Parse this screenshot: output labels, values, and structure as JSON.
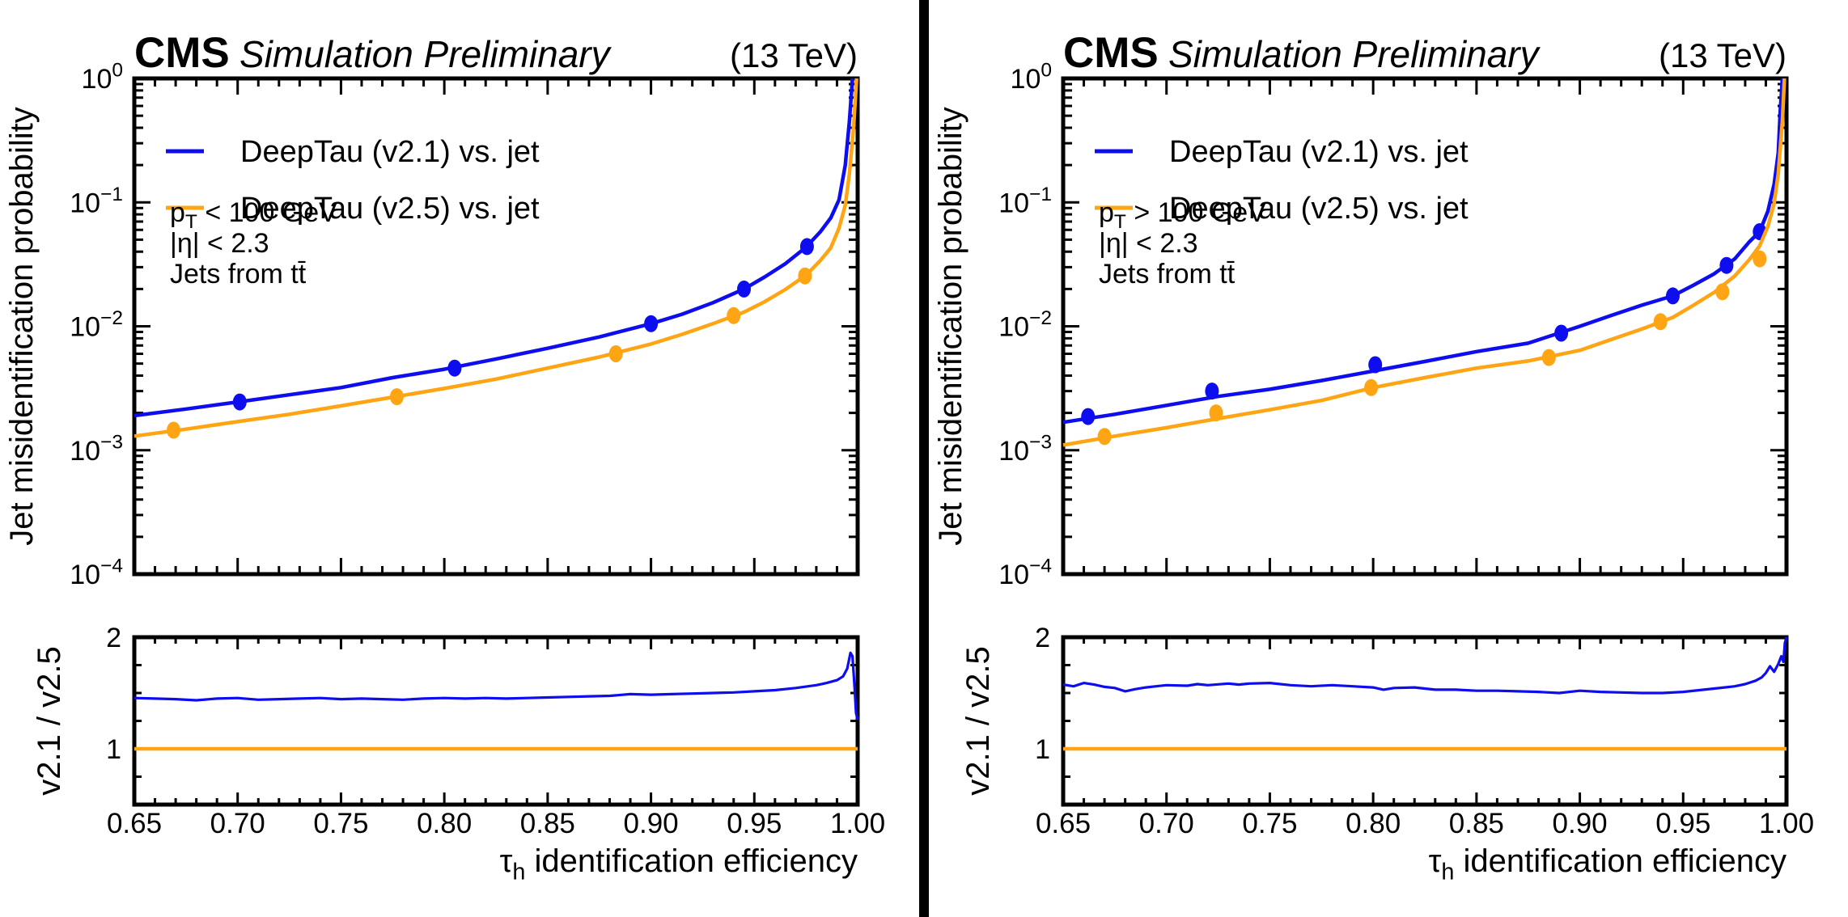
{
  "colors": {
    "blue": "#0d0df0",
    "orange": "#ffa513",
    "frame": "#000000",
    "background": "#ffffff"
  },
  "chart_data": {
    "type": "line",
    "panels": [
      {
        "name": "pt-below-100",
        "header": {
          "experiment": "CMS",
          "sublabel": "Simulation Preliminary",
          "energy": "(13 TeV)"
        },
        "legend": [
          {
            "label": "DeepTau (v2.1) vs. jet",
            "color": "blue"
          },
          {
            "label": "DeepTau (v2.5) vs. jet",
            "color": "orange"
          }
        ],
        "annotations": [
          [
            {
              "t": "p"
            },
            {
              "t": "T",
              "sub": true
            },
            {
              "t": " < 100 GeV"
            }
          ],
          [
            {
              "t": "|η| < 2.3"
            }
          ],
          [
            {
              "t": "Jets from tt̄"
            }
          ]
        ],
        "axes": {
          "x": {
            "label_tokens": [
              {
                "t": "τ"
              },
              {
                "t": "h",
                "sub": true
              },
              {
                "t": " identification efficiency"
              }
            ],
            "lim": [
              0.65,
              1.0
            ],
            "major_ticks": [
              0.65,
              0.7,
              0.75,
              0.8,
              0.85,
              0.9,
              0.95,
              1.0
            ],
            "minor_step": 0.01
          },
          "y_main": {
            "label": "Jet misidentification probability",
            "scale": "log",
            "tick_exponents": [
              0,
              -1,
              -2,
              -3,
              -4
            ]
          },
          "y_ratio": {
            "label": "v2.1 / v2.5",
            "lim": [
              0.5,
              2
            ],
            "major_ticks": [
              1,
              2
            ],
            "minor_step": 0.25
          }
        },
        "main_series": [
          {
            "name": "DeepTau (v2.1) vs. jet",
            "color": "blue",
            "x": [
              0.65,
              0.675,
              0.7,
              0.725,
              0.75,
              0.775,
              0.8,
              0.825,
              0.85,
              0.875,
              0.9,
              0.915,
              0.93,
              0.945,
              0.955,
              0.965,
              0.975,
              0.982,
              0.987,
              0.991,
              0.994,
              0.996,
              0.9975
            ],
            "y": [
              0.0019,
              0.00215,
              0.00245,
              0.0028,
              0.0032,
              0.00385,
              0.0045,
              0.00545,
              0.00665,
              0.0082,
              0.0105,
              0.0125,
              0.0155,
              0.02,
              0.025,
              0.032,
              0.0435,
              0.058,
              0.075,
              0.105,
              0.2,
              0.45,
              1.0
            ],
            "markers": [
              [
                0.701,
                0.00245
              ],
              [
                0.805,
                0.0046
              ],
              [
                0.9,
                0.0105
              ],
              [
                0.945,
                0.02
              ],
              [
                0.9755,
                0.044
              ]
            ]
          },
          {
            "name": "DeepTau (v2.5) vs. jet",
            "color": "orange",
            "x": [
              0.65,
              0.675,
              0.7,
              0.725,
              0.75,
              0.775,
              0.8,
              0.825,
              0.85,
              0.875,
              0.9,
              0.915,
              0.93,
              0.945,
              0.955,
              0.965,
              0.975,
              0.982,
              0.987,
              0.991,
              0.994,
              0.996,
              0.998,
              0.9995
            ],
            "y": [
              0.0013,
              0.00148,
              0.0017,
              0.00195,
              0.00228,
              0.00268,
              0.00315,
              0.00375,
              0.0046,
              0.00565,
              0.0072,
              0.0086,
              0.0105,
              0.013,
              0.0158,
              0.0198,
              0.0258,
              0.034,
              0.043,
              0.062,
              0.095,
              0.17,
              0.4,
              1.0
            ],
            "markers": [
              [
                0.669,
                0.00145
              ],
              [
                0.777,
                0.0027
              ],
              [
                0.883,
                0.006
              ],
              [
                0.94,
                0.0122
              ],
              [
                0.9745,
                0.0255
              ]
            ]
          }
        ],
        "ratio_series": [
          {
            "name": "v2.1 / v2.5 ratio",
            "color": "blue",
            "width": 3.2,
            "x": [
              0.65,
              0.66,
              0.67,
              0.68,
              0.69,
              0.7,
              0.71,
              0.72,
              0.73,
              0.74,
              0.75,
              0.76,
              0.77,
              0.78,
              0.79,
              0.8,
              0.81,
              0.82,
              0.83,
              0.84,
              0.85,
              0.86,
              0.87,
              0.88,
              0.89,
              0.9,
              0.91,
              0.92,
              0.93,
              0.94,
              0.95,
              0.96,
              0.97,
              0.98,
              0.985,
              0.99,
              0.993,
              0.995,
              0.9965,
              0.9975,
              0.9985,
              0.9992,
              1.0
            ],
            "y": [
              1.455,
              1.45,
              1.445,
              1.435,
              1.45,
              1.455,
              1.44,
              1.445,
              1.45,
              1.455,
              1.445,
              1.45,
              1.445,
              1.44,
              1.45,
              1.455,
              1.45,
              1.455,
              1.45,
              1.455,
              1.46,
              1.465,
              1.47,
              1.475,
              1.49,
              1.485,
              1.49,
              1.495,
              1.5,
              1.505,
              1.515,
              1.525,
              1.545,
              1.57,
              1.59,
              1.615,
              1.65,
              1.72,
              1.86,
              1.83,
              1.55,
              1.32,
              1.26
            ]
          },
          {
            "name": "v2.5 reference",
            "color": "orange",
            "width": 4.5,
            "x": [
              0.65,
              1.0
            ],
            "y": [
              1.0,
              1.0
            ]
          }
        ]
      },
      {
        "name": "pt-above-100",
        "header": {
          "experiment": "CMS",
          "sublabel": "Simulation Preliminary",
          "energy": "(13 TeV)"
        },
        "legend": [
          {
            "label": "DeepTau (v2.1) vs. jet",
            "color": "blue"
          },
          {
            "label": "DeepTau (v2.5) vs. jet",
            "color": "orange"
          }
        ],
        "annotations": [
          [
            {
              "t": "p"
            },
            {
              "t": "T",
              "sub": true
            },
            {
              "t": " > 100 GeV"
            }
          ],
          [
            {
              "t": "|η| < 2.3"
            }
          ],
          [
            {
              "t": "Jets from tt̄"
            }
          ]
        ],
        "axes": {
          "x": {
            "label_tokens": [
              {
                "t": "τ"
              },
              {
                "t": "h",
                "sub": true
              },
              {
                "t": " identification efficiency"
              }
            ],
            "lim": [
              0.65,
              1.0
            ],
            "major_ticks": [
              0.65,
              0.7,
              0.75,
              0.8,
              0.85,
              0.9,
              0.95,
              1.0
            ],
            "minor_step": 0.01
          },
          "y_main": {
            "label": "Jet misidentification probability",
            "scale": "log",
            "tick_exponents": [
              0,
              -1,
              -2,
              -3,
              -4
            ]
          },
          "y_ratio": {
            "label": "v2.1 / v2.5",
            "lim": [
              0.5,
              2
            ],
            "major_ticks": [
              1,
              2
            ],
            "minor_step": 0.25
          }
        },
        "main_series": [
          {
            "name": "DeepTau (v2.1) vs. jet",
            "color": "blue",
            "x": [
              0.65,
              0.675,
              0.7,
              0.725,
              0.75,
              0.775,
              0.8,
              0.825,
              0.85,
              0.875,
              0.9,
              0.915,
              0.93,
              0.945,
              0.955,
              0.965,
              0.975,
              0.982,
              0.987,
              0.991,
              0.994,
              0.996,
              0.997,
              0.998
            ],
            "y": [
              0.00168,
              0.00195,
              0.0023,
              0.00272,
              0.0031,
              0.00365,
              0.00435,
              0.0052,
              0.00625,
              0.0073,
              0.01,
              0.0122,
              0.0148,
              0.0176,
              0.0215,
              0.0265,
              0.035,
              0.048,
              0.058,
              0.085,
              0.14,
              0.25,
              0.55,
              1.0
            ],
            "markers": [
              [
                0.662,
                0.00187
              ],
              [
                0.722,
                0.003
              ],
              [
                0.801,
                0.0049
              ],
              [
                0.891,
                0.0088
              ],
              [
                0.945,
                0.0176
              ],
              [
                0.971,
                0.031
              ],
              [
                0.987,
                0.058
              ]
            ]
          },
          {
            "name": "DeepTau (v2.5) vs. jet",
            "color": "orange",
            "x": [
              0.65,
              0.675,
              0.7,
              0.725,
              0.75,
              0.775,
              0.8,
              0.825,
              0.85,
              0.875,
              0.9,
              0.915,
              0.93,
              0.945,
              0.955,
              0.965,
              0.975,
              0.982,
              0.987,
              0.991,
              0.994,
              0.996,
              0.998,
              0.999
            ],
            "y": [
              0.0011,
              0.0013,
              0.00152,
              0.0018,
              0.00212,
              0.00252,
              0.0032,
              0.00385,
              0.0046,
              0.00525,
              0.0064,
              0.0078,
              0.0095,
              0.0118,
              0.0148,
              0.0188,
              0.0255,
              0.0345,
              0.0445,
              0.064,
              0.098,
              0.17,
              0.45,
              1.0
            ],
            "markers": [
              [
                0.67,
                0.00129
              ],
              [
                0.724,
                0.002
              ],
              [
                0.799,
                0.0032
              ],
              [
                0.885,
                0.0056
              ],
              [
                0.939,
                0.0109
              ],
              [
                0.969,
                0.019
              ],
              [
                0.987,
                0.035
              ]
            ]
          }
        ],
        "ratio_series": [
          {
            "name": "v2.1 / v2.5 ratio",
            "color": "blue",
            "width": 3.2,
            "x": [
              0.65,
              0.655,
              0.66,
              0.665,
              0.67,
              0.675,
              0.68,
              0.685,
              0.69,
              0.695,
              0.7,
              0.71,
              0.715,
              0.72,
              0.73,
              0.735,
              0.74,
              0.75,
              0.76,
              0.77,
              0.78,
              0.79,
              0.8,
              0.805,
              0.81,
              0.82,
              0.83,
              0.84,
              0.85,
              0.86,
              0.87,
              0.88,
              0.89,
              0.9,
              0.91,
              0.92,
              0.93,
              0.94,
              0.95,
              0.96,
              0.97,
              0.975,
              0.98,
              0.985,
              0.988,
              0.99,
              0.992,
              0.994,
              0.996,
              0.9975,
              0.9985,
              0.9992,
              1.0
            ],
            "y": [
              1.575,
              1.56,
              1.59,
              1.575,
              1.555,
              1.545,
              1.515,
              1.535,
              1.55,
              1.56,
              1.57,
              1.565,
              1.58,
              1.57,
              1.585,
              1.575,
              1.585,
              1.59,
              1.57,
              1.56,
              1.57,
              1.56,
              1.55,
              1.53,
              1.545,
              1.55,
              1.53,
              1.53,
              1.52,
              1.52,
              1.515,
              1.51,
              1.5,
              1.52,
              1.51,
              1.505,
              1.5,
              1.5,
              1.51,
              1.53,
              1.55,
              1.56,
              1.58,
              1.61,
              1.64,
              1.68,
              1.74,
              1.69,
              1.76,
              1.83,
              1.78,
              1.95,
              2.0
            ]
          },
          {
            "name": "v2.5 reference",
            "color": "orange",
            "width": 4.5,
            "x": [
              0.65,
              1.0
            ],
            "y": [
              1.0,
              1.0
            ]
          }
        ]
      }
    ]
  }
}
